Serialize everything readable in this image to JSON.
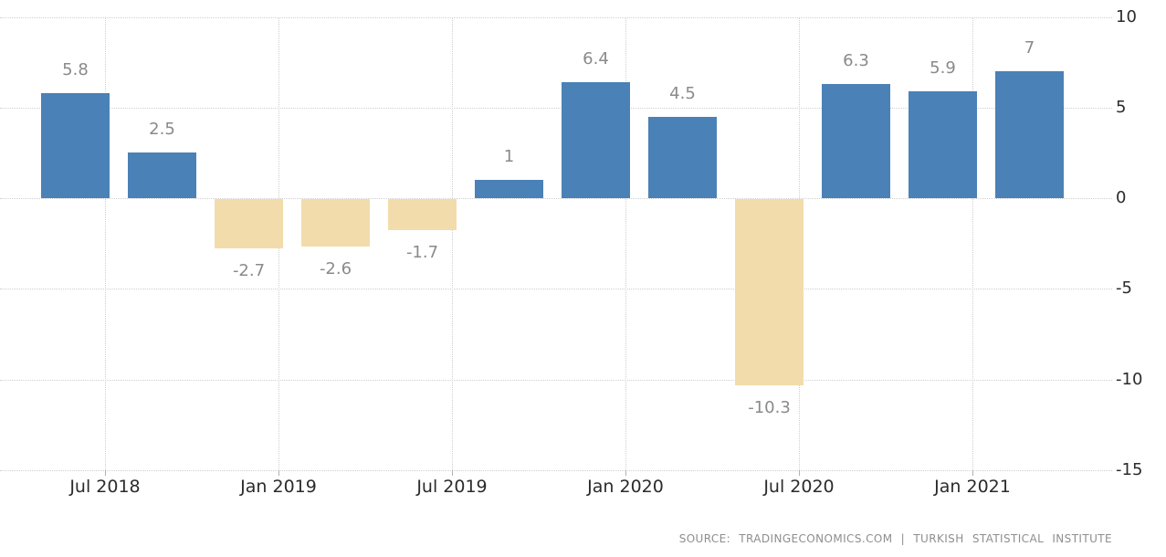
{
  "chart_data": {
    "type": "bar",
    "title": "",
    "xlabel": "",
    "ylabel": "",
    "values": [
      5.8,
      2.5,
      -2.7,
      -2.6,
      -1.7,
      1,
      6.4,
      4.5,
      -10.3,
      6.3,
      5.9,
      7
    ],
    "bar_labels": [
      "5.8",
      "2.5",
      "-2.7",
      "-2.6",
      "-1.7",
      "1",
      "6.4",
      "4.5",
      "-10.3",
      "6.3",
      "5.9",
      "7"
    ],
    "x_tick_labels": [
      "Jul 2018",
      "Jan 2019",
      "Jul 2019",
      "Jan 2020",
      "Jul 2020",
      "Jan 2021"
    ],
    "y_ticks": [
      10,
      5,
      0,
      -5,
      -10,
      -15
    ],
    "y_tick_labels": [
      "10",
      "5",
      "0",
      "-5",
      "-10",
      "-15"
    ],
    "ylim": [
      -15,
      10
    ],
    "grid": "dotted",
    "legend_position": "none",
    "y_axis_side": "right",
    "colors": {
      "positive_bar": "#4A81B6",
      "negative_bar": "#F2DCAC",
      "gridline": "#CFCFCF",
      "axis_text": "#2B2B2B",
      "value_text": "#8A8A8A",
      "source_text": "#8E8E8E"
    }
  },
  "footer": {
    "source": "SOURCE: TRADINGECONOMICS.COM | TURKISH STATISTICAL INSTITUTE"
  }
}
